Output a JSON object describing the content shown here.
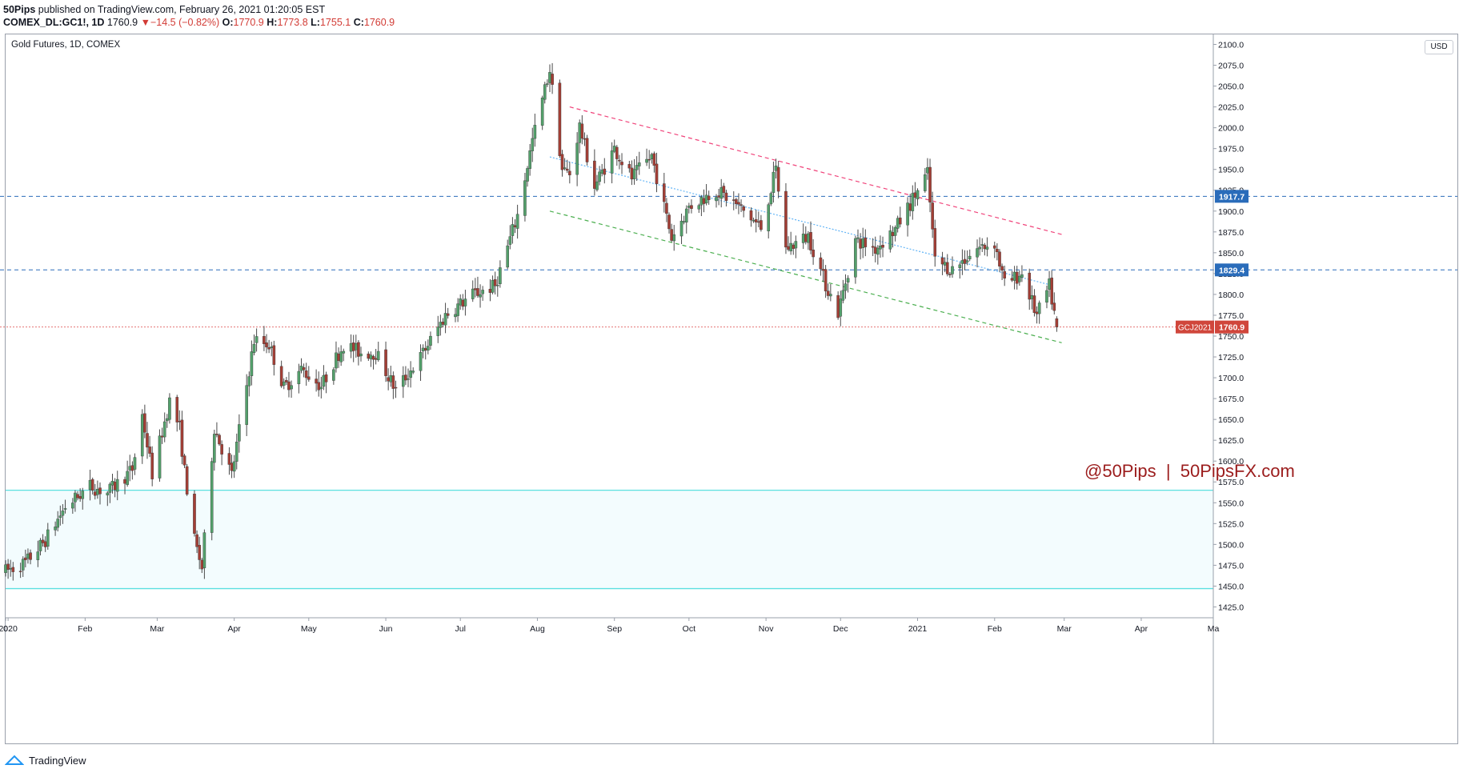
{
  "header": {
    "publisher": "50Pips",
    "published_text": " published on TradingView.com, February 26, 2021 01:20:05 EST",
    "symbol": "COMEX_DL:GC1!, 1D",
    "last": "1760.9",
    "change": "−14.5 (−0.82%)",
    "o_label": "O:",
    "o_val": "1770.9",
    "h_label": "H:",
    "h_val": "1773.8",
    "l_label": "L:",
    "l_val": "1755.1",
    "c_label": "C:",
    "c_val": "1760.9"
  },
  "currency": "USD",
  "footer": {
    "brand": "TradingView"
  },
  "colors": {
    "up": "#53a06b",
    "down": "#a33e35",
    "hline": "#2a6cba",
    "last_line": "#e57373",
    "zone_line": "#5ce0e0",
    "zone_fill": "#f3fcfe",
    "channel_top": "#f0437a",
    "channel_mid": "#64b5f6",
    "channel_bottom": "#4caf50",
    "watermark": "#9b1c1c"
  },
  "chart_data": {
    "type": "candlestick",
    "title": "Gold Futures, 1D, COMEX",
    "ylim": [
      1412,
      2112
    ],
    "yticks": [
      1425,
      1450,
      1475,
      1500,
      1525,
      1550,
      1575,
      1600,
      1625,
      1650,
      1675,
      1700,
      1725,
      1750,
      1775,
      1800,
      1825,
      1850,
      1875,
      1900,
      1925,
      1950,
      1975,
      2000,
      2025,
      2050,
      2075,
      2100
    ],
    "xlim": [
      "2019-12-31",
      "2021-04-30"
    ],
    "xticks": [
      {
        "date": "2019-12-31",
        "label": "0"
      },
      {
        "date": "2020-01-01",
        "label": "2020"
      },
      {
        "date": "2020-02-01",
        "label": "Feb"
      },
      {
        "date": "2020-03-01",
        "label": "Mar"
      },
      {
        "date": "2020-04-01",
        "label": "Apr"
      },
      {
        "date": "2020-05-01",
        "label": "May"
      },
      {
        "date": "2020-06-01",
        "label": "Jun"
      },
      {
        "date": "2020-07-01",
        "label": "Jul"
      },
      {
        "date": "2020-08-01",
        "label": "Aug"
      },
      {
        "date": "2020-09-01",
        "label": "Sep"
      },
      {
        "date": "2020-10-01",
        "label": "Oct"
      },
      {
        "date": "2020-11-01",
        "label": "Nov"
      },
      {
        "date": "2020-12-01",
        "label": "Dec"
      },
      {
        "date": "2021-01-01",
        "label": "2021"
      },
      {
        "date": "2021-02-01",
        "label": "Feb"
      },
      {
        "date": "2021-03-01",
        "label": "Mar"
      },
      {
        "date": "2021-04-01",
        "label": "Apr"
      },
      {
        "date": "2021-04-30",
        "label": "Ma"
      }
    ],
    "price_path": [
      [
        "2019-12-31",
        1468
      ],
      [
        "2020-01-08",
        1478
      ],
      [
        "2020-01-16",
        1505
      ],
      [
        "2020-01-24",
        1545
      ],
      [
        "2020-02-03",
        1570
      ],
      [
        "2020-02-10",
        1562
      ],
      [
        "2020-02-20",
        1590
      ],
      [
        "2020-02-24",
        1655
      ],
      [
        "2020-02-28",
        1585
      ],
      [
        "2020-03-06",
        1672
      ],
      [
        "2020-03-10",
        1640
      ],
      [
        "2020-03-12",
        1588
      ],
      [
        "2020-03-16",
        1505
      ],
      [
        "2020-03-19",
        1472
      ],
      [
        "2020-03-24",
        1640
      ],
      [
        "2020-03-31",
        1583
      ],
      [
        "2020-04-09",
        1745
      ],
      [
        "2020-04-15",
        1740
      ],
      [
        "2020-04-21",
        1688
      ],
      [
        "2020-04-28",
        1710
      ],
      [
        "2020-05-06",
        1690
      ],
      [
        "2020-05-15",
        1740
      ],
      [
        "2020-05-22",
        1730
      ],
      [
        "2020-05-28",
        1730
      ],
      [
        "2020-06-05",
        1685
      ],
      [
        "2020-06-15",
        1725
      ],
      [
        "2020-06-25",
        1775
      ],
      [
        "2020-07-06",
        1800
      ],
      [
        "2020-07-15",
        1810
      ],
      [
        "2020-07-24",
        1895
      ],
      [
        "2020-07-30",
        1985
      ],
      [
        "2020-08-06",
        2070
      ],
      [
        "2020-08-11",
        1950
      ],
      [
        "2020-08-14",
        1945
      ],
      [
        "2020-08-18",
        2002
      ],
      [
        "2020-08-24",
        1930
      ],
      [
        "2020-09-01",
        1975
      ],
      [
        "2020-09-08",
        1940
      ],
      [
        "2020-09-16",
        1966
      ],
      [
        "2020-09-24",
        1868
      ],
      [
        "2020-10-01",
        1905
      ],
      [
        "2020-10-12",
        1925
      ],
      [
        "2020-10-20",
        1908
      ],
      [
        "2020-10-30",
        1880
      ],
      [
        "2020-11-05",
        1950
      ],
      [
        "2020-11-09",
        1855
      ],
      [
        "2020-11-18",
        1870
      ],
      [
        "2020-11-25",
        1812
      ],
      [
        "2020-11-30",
        1778
      ],
      [
        "2020-12-07",
        1865
      ],
      [
        "2020-12-15",
        1855
      ],
      [
        "2020-12-23",
        1878
      ],
      [
        "2021-01-05",
        1945
      ],
      [
        "2021-01-08",
        1840
      ],
      [
        "2021-01-15",
        1830
      ],
      [
        "2021-01-25",
        1855
      ],
      [
        "2021-02-01",
        1862
      ],
      [
        "2021-02-05",
        1812
      ],
      [
        "2021-02-12",
        1825
      ],
      [
        "2021-02-18",
        1774
      ],
      [
        "2021-02-23",
        1810
      ],
      [
        "2021-02-26",
        1760.9
      ]
    ],
    "last_price": {
      "label": "GCJ2021",
      "value": "1760.9"
    },
    "horizontal_levels": [
      {
        "value": 1917.7,
        "label": "1917.7",
        "style": "dashed"
      },
      {
        "value": 1829.4,
        "label": "1829.4",
        "style": "dashed"
      }
    ],
    "support_zone": [
      1447,
      1565
    ],
    "trendlines": [
      {
        "name": "channel-top",
        "from": [
          "2020-08-14",
          2025
        ],
        "to": [
          "2021-02-28",
          1872
        ],
        "style": "dashed"
      },
      {
        "name": "channel-mid",
        "from": [
          "2020-08-06",
          1965
        ],
        "to": [
          "2021-02-24",
          1811
        ],
        "style": "dotted"
      },
      {
        "name": "channel-bottom",
        "from": [
          "2020-08-06",
          1900
        ],
        "to": [
          "2021-02-28",
          1742
        ],
        "style": "dashed"
      }
    ],
    "annotation": "@50Pips  |  50PipsFX.com"
  }
}
